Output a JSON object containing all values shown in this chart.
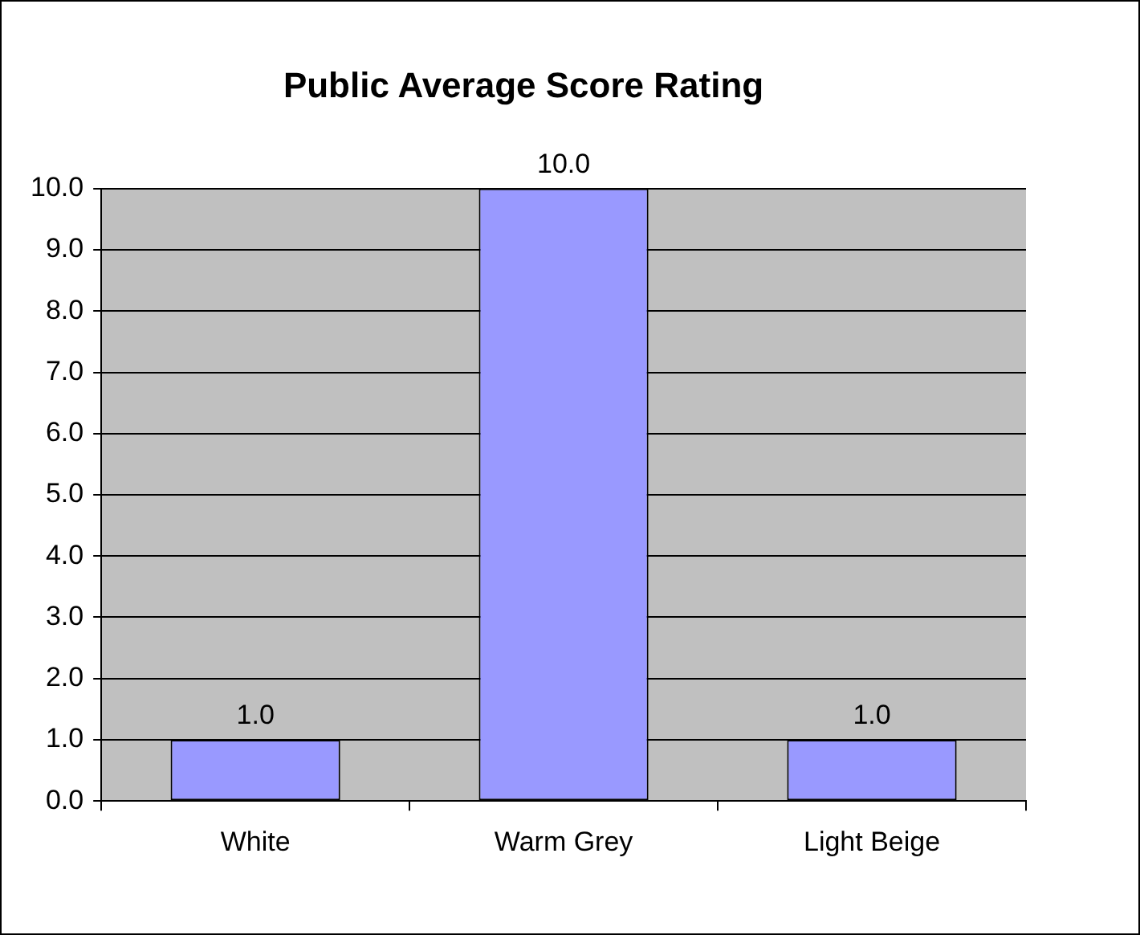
{
  "chart_data": {
    "type": "bar",
    "title": "Public Average Score Rating",
    "categories": [
      "White",
      "Warm Grey",
      "Light Beige"
    ],
    "values": [
      1,
      10,
      1
    ],
    "value_labels": [
      "1.0",
      "10.0",
      "1.0"
    ],
    "color": "#9999ff",
    "ylim": [
      0,
      10
    ],
    "yticks": [
      {
        "value": 0,
        "label": "0.0"
      },
      {
        "value": 1,
        "label": "1.0"
      },
      {
        "value": 2,
        "label": "2.0"
      },
      {
        "value": 3,
        "label": "3.0"
      },
      {
        "value": 4,
        "label": "4.0"
      },
      {
        "value": 5,
        "label": "5.0"
      },
      {
        "value": 6,
        "label": "6.0"
      },
      {
        "value": 7,
        "label": "7.0"
      },
      {
        "value": 8,
        "label": "8.0"
      },
      {
        "value": 9,
        "label": "9.0"
      },
      {
        "value": 10,
        "label": "10.0"
      }
    ],
    "grid": "y",
    "legend": false
  }
}
